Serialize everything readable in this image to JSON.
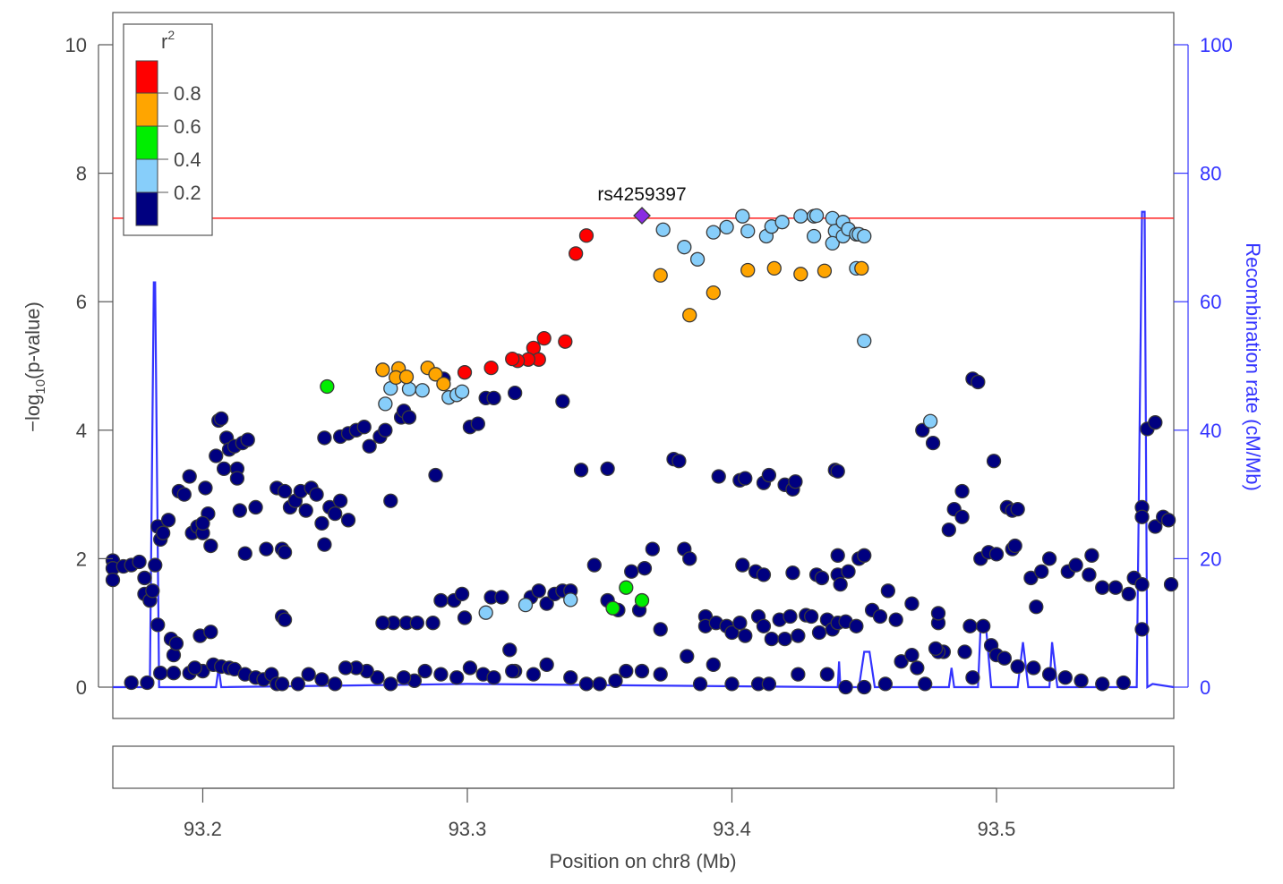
{
  "chart_data": {
    "type": "scatter",
    "xlabel": "Position on chr8 (Mb)",
    "ylabel": "-log10(p-value)",
    "ylabel_parts": {
      "pre": "−log",
      "sub": "10",
      "post": "(p-value)"
    },
    "y2label": "Recombination rate (cM/Mb)",
    "xlim": [
      93.166,
      93.567
    ],
    "ylim": [
      0,
      10
    ],
    "y2lim": [
      0,
      100
    ],
    "xticks": [
      "93.2",
      "93.3",
      "93.4",
      "93.5"
    ],
    "yticks": [
      "0",
      "2",
      "4",
      "6",
      "8",
      "10"
    ],
    "y2ticks": [
      "0",
      "20",
      "40",
      "60",
      "80",
      "100"
    ],
    "threshold": 7.3,
    "colors": {
      "threshold": "#ff2020",
      "recomb": "#3333ff",
      "lead": "#8a2be2",
      "r2_0.8_1": "#ff0000",
      "r2_0.6_0.8": "#ffa500",
      "r2_0.4_0.6": "#00ee00",
      "r2_0.2_0.4": "#87cefa",
      "r2_0_0.2": "#000080"
    },
    "legend": {
      "title": "r",
      "title_sup": "2",
      "labels": [
        "0.8",
        "0.6",
        "0.4",
        "0.2"
      ],
      "placement": "top-left"
    },
    "lead_snp": {
      "label": "rs4259397",
      "x": 93.366,
      "y": 7.34
    },
    "series": [
      {
        "r2_bin": "0.8-1",
        "color": "#ff0000",
        "x": [
          93.341,
          93.345,
          93.337,
          93.329,
          93.325,
          93.327,
          93.323,
          93.319,
          93.317,
          93.309,
          93.299
        ],
        "y": [
          6.75,
          7.03,
          5.38,
          5.43,
          5.28,
          5.1,
          5.1,
          5.08,
          5.11,
          4.97,
          4.9
        ]
      },
      {
        "r2_bin": "0.6-0.8",
        "color": "#ffa500",
        "x": [
          93.268,
          93.274,
          93.273,
          93.277,
          93.285,
          93.288,
          93.291,
          93.373,
          93.384,
          93.393,
          93.406,
          93.416,
          93.426,
          93.435,
          93.449
        ],
        "y": [
          4.94,
          4.96,
          4.82,
          4.83,
          4.97,
          4.87,
          4.72,
          6.41,
          5.79,
          6.14,
          6.49,
          6.52,
          6.43,
          6.48,
          6.52
        ]
      },
      {
        "r2_bin": "0.4-0.6",
        "color": "#00ee00",
        "x": [
          93.247,
          93.355,
          93.36,
          93.366
        ],
        "y": [
          4.68,
          1.23,
          1.55,
          1.35
        ]
      },
      {
        "r2_bin": "0.2-0.4",
        "color": "#87cefa",
        "x": [
          93.271,
          93.269,
          93.278,
          93.283,
          93.293,
          93.296,
          93.298,
          93.374,
          93.382,
          93.387,
          93.393,
          93.398,
          93.404,
          93.406,
          93.413,
          93.415,
          93.419,
          93.426,
          93.431,
          93.431,
          93.432,
          93.438,
          93.439,
          93.438,
          93.442,
          93.442,
          93.444,
          93.447,
          93.448,
          93.45,
          93.447,
          93.45,
          93.475,
          93.307,
          93.322,
          93.339
        ],
        "y": [
          4.65,
          4.41,
          4.64,
          4.62,
          4.51,
          4.55,
          4.6,
          7.12,
          6.85,
          6.66,
          7.08,
          7.16,
          7.33,
          7.1,
          7.02,
          7.17,
          7.24,
          7.33,
          7.33,
          7.02,
          7.34,
          7.3,
          7.1,
          6.91,
          7.24,
          7.02,
          7.13,
          7.05,
          7.05,
          7.02,
          6.52,
          5.39,
          4.14,
          1.16,
          1.28,
          1.36
        ]
      },
      {
        "r2_bin": "0-0.2",
        "color": "#000080",
        "x": [
          93.166,
          93.166,
          93.166,
          93.17,
          93.173,
          93.176,
          93.178,
          93.178,
          93.18,
          93.181,
          93.182,
          93.183,
          93.183,
          93.184,
          93.185,
          93.187,
          93.188,
          93.189,
          93.19,
          93.191,
          93.193,
          93.195,
          93.196,
          93.198,
          93.199,
          93.2,
          93.201,
          93.202,
          93.203,
          93.203,
          93.205,
          93.206,
          93.207,
          93.208,
          93.209,
          93.21,
          93.212,
          93.213,
          93.213,
          93.214,
          93.215,
          93.217,
          93.216,
          93.173,
          93.179,
          93.184,
          93.189,
          93.195,
          93.2,
          93.204,
          93.207,
          93.21,
          93.212,
          93.216,
          93.22,
          93.223,
          93.226,
          93.228,
          93.23,
          93.23,
          93.231,
          93.23,
          93.231,
          93.224,
          93.22,
          93.228,
          93.231,
          93.233,
          93.235,
          93.237,
          93.239,
          93.241,
          93.243,
          93.245,
          93.246,
          93.248,
          93.25,
          93.252,
          93.255,
          93.246,
          93.252,
          93.255,
          93.258,
          93.261,
          93.263,
          93.267,
          93.269,
          93.271,
          93.275,
          93.276,
          93.278,
          93.288,
          93.277,
          93.272,
          93.268,
          93.281,
          93.287,
          93.29,
          93.295,
          93.298,
          93.299,
          93.301,
          93.306,
          93.309,
          93.313,
          93.316,
          93.318,
          93.324,
          93.327,
          93.33,
          93.333,
          93.336,
          93.339,
          93.343,
          93.353,
          93.348,
          93.353,
          93.357,
          93.362,
          93.365,
          93.367,
          93.37,
          93.373,
          93.378,
          93.38,
          93.382,
          93.384,
          93.383,
          93.39,
          93.39,
          93.393,
          93.395,
          93.403,
          93.405,
          93.404,
          93.409,
          93.412,
          93.412,
          93.414,
          93.42,
          93.423,
          93.424,
          93.423,
          93.432,
          93.434,
          93.439,
          93.44,
          93.44,
          93.44,
          93.441,
          93.444,
          93.448,
          93.45,
          93.459,
          93.468,
          93.472,
          93.476,
          93.478,
          93.482,
          93.484,
          93.487,
          93.487,
          93.491,
          93.493,
          93.494,
          93.497,
          93.5,
          93.499,
          93.504,
          93.506,
          93.508,
          93.506,
          93.507,
          93.52,
          93.513,
          93.515,
          93.517,
          93.527,
          93.53,
          93.535,
          93.536,
          93.54,
          93.545,
          93.55,
          93.552,
          93.555,
          93.555,
          93.555,
          93.555,
          93.557,
          93.56,
          93.56,
          93.563,
          93.565,
          93.566,
          93.394,
          93.398,
          93.4,
          93.403,
          93.405,
          93.41,
          93.412,
          93.415,
          93.418,
          93.42,
          93.422,
          93.425,
          93.428,
          93.43,
          93.433,
          93.436,
          93.438,
          93.44,
          93.443,
          93.447,
          93.453,
          93.456,
          93.462,
          93.478,
          93.48,
          93.478,
          93.488,
          93.49,
          93.495,
          93.498,
          93.5,
          93.503,
          93.508,
          93.514,
          93.52,
          93.526,
          93.532,
          93.54,
          93.548,
          93.464,
          93.468,
          93.47,
          93.473,
          93.477,
          93.491,
          93.458,
          93.443,
          93.45,
          93.436,
          93.41,
          93.414,
          93.425,
          93.4,
          93.388,
          93.373,
          93.366,
          93.36,
          93.356,
          93.35,
          93.345,
          93.339,
          93.33,
          93.325,
          93.317,
          93.31,
          93.296,
          93.29,
          93.284,
          93.28,
          93.276,
          93.271,
          93.266,
          93.262,
          93.258,
          93.254,
          93.25,
          93.245,
          93.24,
          93.236,
          93.197,
          93.2,
          93.291,
          93.301,
          93.304,
          93.307,
          93.31,
          93.318,
          93.336
        ],
        "y": [
          1.97,
          1.85,
          1.67,
          1.88,
          1.9,
          1.95,
          1.7,
          1.45,
          1.35,
          1.5,
          1.9,
          0.97,
          2.5,
          2.3,
          2.4,
          2.6,
          0.75,
          0.5,
          0.68,
          3.05,
          3.0,
          3.28,
          2.4,
          2.5,
          0.8,
          2.4,
          3.1,
          2.7,
          0.86,
          2.2,
          3.6,
          4.15,
          4.18,
          3.4,
          3.88,
          3.7,
          3.75,
          3.4,
          3.25,
          2.75,
          3.8,
          3.85,
          2.08,
          0.07,
          0.07,
          0.22,
          0.22,
          0.22,
          0.25,
          0.35,
          0.32,
          0.3,
          0.28,
          0.2,
          0.15,
          0.12,
          0.2,
          0.05,
          0.05,
          1.1,
          1.05,
          2.15,
          2.1,
          2.15,
          2.8,
          3.1,
          3.05,
          2.8,
          2.9,
          3.05,
          2.75,
          3.1,
          3.0,
          2.55,
          2.22,
          2.8,
          2.7,
          2.9,
          2.6,
          3.88,
          3.9,
          3.95,
          4.0,
          4.05,
          3.75,
          3.9,
          4.0,
          2.9,
          4.2,
          4.3,
          4.2,
          3.3,
          1.0,
          1.0,
          1.0,
          1.0,
          1.0,
          1.35,
          1.35,
          1.45,
          1.08,
          0.3,
          0.2,
          1.4,
          1.4,
          0.58,
          0.25,
          1.4,
          1.5,
          1.3,
          1.45,
          1.5,
          1.5,
          3.38,
          3.4,
          1.9,
          1.35,
          1.2,
          1.8,
          1.2,
          1.85,
          2.15,
          0.9,
          3.55,
          3.52,
          2.15,
          2.0,
          0.48,
          1.1,
          0.95,
          0.35,
          3.28,
          3.22,
          3.25,
          1.9,
          1.8,
          1.75,
          3.18,
          3.3,
          3.15,
          3.08,
          3.2,
          1.78,
          1.75,
          1.7,
          3.38,
          3.36,
          2.05,
          1.75,
          1.6,
          1.8,
          2.0,
          2.05,
          1.5,
          1.3,
          4.0,
          3.8,
          1.0,
          2.45,
          2.77,
          3.05,
          2.65,
          4.8,
          4.75,
          2.0,
          2.1,
          2.07,
          3.52,
          2.8,
          2.75,
          2.77,
          2.15,
          2.2,
          2.0,
          1.7,
          1.25,
          1.8,
          1.8,
          1.9,
          1.75,
          2.05,
          1.55,
          1.55,
          1.45,
          1.7,
          1.6,
          0.9,
          2.8,
          2.65,
          4.02,
          4.12,
          2.5,
          2.65,
          2.6,
          1.6,
          1.0,
          0.95,
          0.85,
          1.0,
          0.8,
          1.1,
          0.95,
          0.75,
          1.05,
          0.75,
          1.1,
          0.8,
          1.12,
          1.1,
          0.85,
          1.05,
          0.9,
          1.0,
          1.02,
          0.95,
          1.2,
          1.1,
          1.05,
          1.15,
          0.55,
          0.55,
          0.55,
          0.95,
          0.95,
          0.65,
          0.5,
          0.45,
          0.32,
          0.3,
          0.2,
          0.15,
          0.1,
          0.05,
          0.07,
          0.4,
          0.5,
          0.3,
          0.05,
          0.6,
          0.15,
          0.05,
          0.0,
          0.0,
          0.2,
          0.05,
          0.05,
          0.2,
          0.05,
          0.05,
          0.2,
          0.25,
          0.25,
          0.1,
          0.05,
          0.05,
          0.15,
          0.35,
          0.2,
          0.25,
          0.15,
          0.15,
          0.2,
          0.25,
          0.1,
          0.15,
          0.05,
          0.15,
          0.25,
          0.3,
          0.3,
          0.05,
          0.12,
          0.2,
          0.05,
          0.3,
          2.55,
          4.8,
          4.05,
          4.1,
          4.5,
          4.5,
          4.58,
          4.45
        ]
      }
    ],
    "recombination": {
      "x": [
        93.166,
        93.18,
        93.1815,
        93.182,
        93.1835,
        93.185,
        93.205,
        93.206,
        93.207,
        93.3,
        93.44,
        93.4405,
        93.441,
        93.448,
        93.45,
        93.452,
        93.454,
        93.482,
        93.483,
        93.484,
        93.493,
        93.494,
        93.496,
        93.498,
        93.508,
        93.51,
        93.512,
        93.52,
        93.521,
        93.523,
        93.553,
        93.555,
        93.556,
        93.557,
        93.559,
        93.567
      ],
      "y": [
        0,
        0,
        63,
        63,
        0,
        0,
        0,
        3,
        0,
        0.5,
        0,
        4,
        0,
        0,
        5.5,
        5.5,
        0,
        0,
        3,
        0,
        0,
        9.5,
        9.5,
        0,
        0,
        7,
        0,
        0,
        7,
        0,
        0,
        74,
        74,
        0,
        0.5,
        0
      ]
    }
  },
  "gene_track": {}
}
